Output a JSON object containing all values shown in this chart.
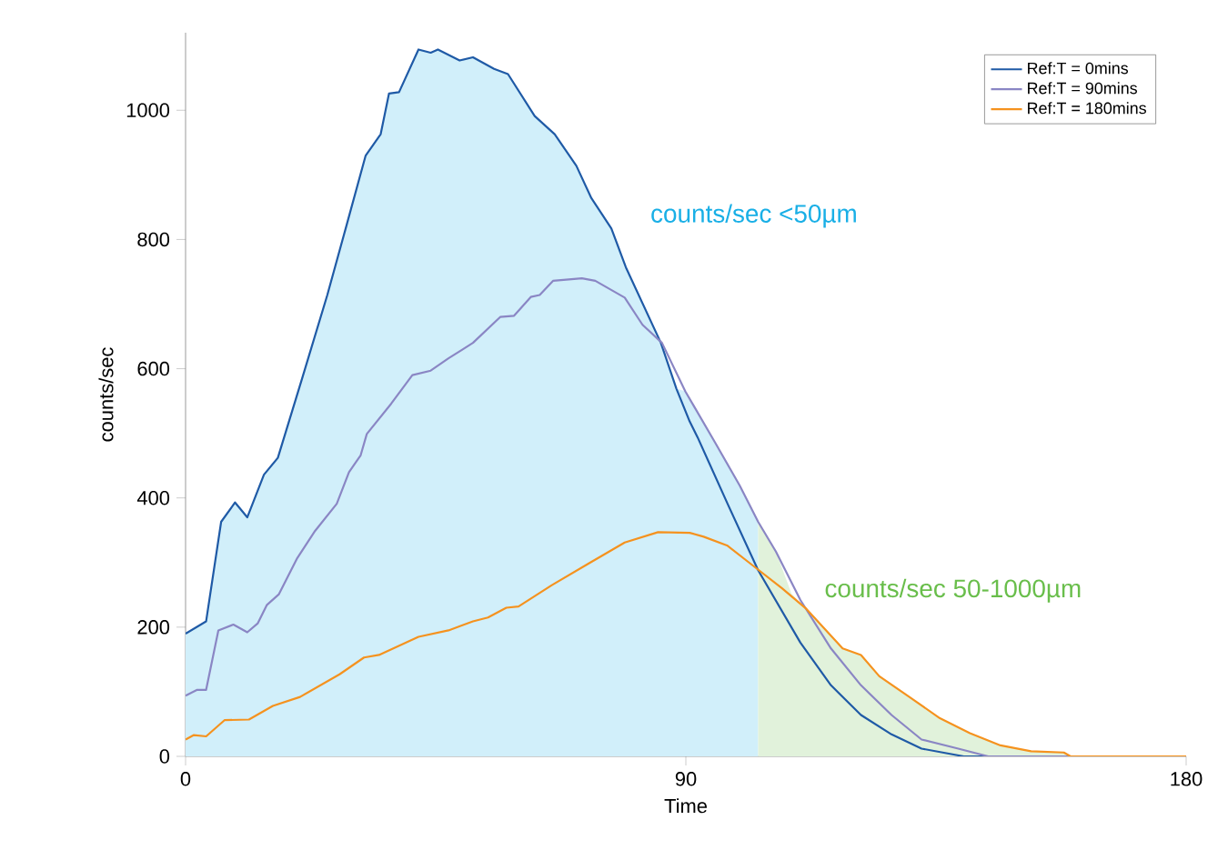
{
  "chart_data": {
    "type": "line",
    "xlabel": "Time",
    "ylabel": "counts/sec",
    "xlim": [
      0,
      180
    ],
    "xticks": [
      0,
      90,
      180
    ],
    "ylim": [
      0,
      1120
    ],
    "yticks": [
      0,
      200,
      400,
      600,
      800,
      1000
    ],
    "legend": "top right",
    "grid": false,
    "series": [
      {
        "type": "area",
        "name": "counts/sec <50µm",
        "color": "#d1effa",
        "x": [
          0,
          3.7,
          6.4,
          8.9,
          11.1,
          14.1,
          16.6,
          20.9,
          25.5,
          28.8,
          32.4,
          35.1,
          36.6,
          38.4,
          41.9,
          44.1,
          45.4,
          49.3,
          51.7,
          55.5,
          58.0,
          62.8,
          66.4,
          70.3,
          73.0,
          76.6,
          79.2,
          85.5,
          88.3,
          89.9,
          95.3,
          99.7,
          103
        ],
        "values": [
          190,
          209,
          363,
          393,
          370,
          436,
          462,
          583,
          714,
          817,
          930,
          963,
          1026,
          1028,
          1094,
          1089,
          1094,
          1077,
          1082,
          1064,
          1056,
          991,
          963,
          914,
          864,
          817,
          757,
          640,
          569,
          565,
          485,
          419,
          363
        ]
      },
      {
        "type": "area",
        "name": "counts/sec 50-1000µm",
        "color": "#e1f2db",
        "x": [
          103,
          106.2,
          109,
          111.7,
          118.2,
          121.5,
          124.8,
          130.2,
          135.7,
          141.1,
          146.6,
          152.1,
          158,
          159.2,
          180
        ],
        "values": [
          363,
          317,
          252,
          228,
          167,
          157,
          124,
          92,
          59,
          36,
          17,
          8,
          6,
          0,
          0
        ]
      },
      {
        "name": "Ref:T = 0mins",
        "color": "#1f5aa6",
        "x": [
          0,
          3.7,
          6.4,
          8.9,
          11.1,
          14.1,
          16.6,
          20.9,
          25.5,
          28.8,
          32.4,
          35.1,
          36.6,
          38.4,
          41.9,
          44.1,
          45.4,
          49.3,
          51.7,
          55.5,
          58.0,
          62.8,
          66.4,
          70.3,
          73.0,
          76.6,
          79.2,
          85.5,
          88.3,
          90.7,
          92.1,
          97.5,
          103,
          110.6,
          116.1,
          121.5,
          127,
          132.4,
          140,
          180
        ],
        "values": [
          190,
          209,
          363,
          393,
          370,
          436,
          462,
          583,
          714,
          817,
          930,
          963,
          1026,
          1028,
          1094,
          1089,
          1094,
          1077,
          1082,
          1064,
          1056,
          991,
          963,
          914,
          864,
          817,
          757,
          640,
          569,
          518,
          494,
          391,
          288,
          176,
          110,
          64,
          34,
          12,
          0,
          0
        ]
      },
      {
        "name": "Ref:T = 90mins",
        "color": "#8a86c4",
        "x": [
          0,
          2.1,
          3.7,
          5.9,
          8.6,
          11.1,
          13,
          14.6,
          16.8,
          20.1,
          23.3,
          27.2,
          29.4,
          31.5,
          32.6,
          37.0,
          40.8,
          44.1,
          47.3,
          51.7,
          56.6,
          59.1,
          62.1,
          63.7,
          66.1,
          71.3,
          73.7,
          79.0,
          82.2,
          85.7,
          89.9,
          95.3,
          99.7,
          103,
          106.2,
          110.6,
          116.1,
          121.5,
          127,
          132.4,
          139,
          144.4,
          180
        ],
        "values": [
          94,
          103,
          103,
          195,
          204,
          192,
          206,
          234,
          251,
          307,
          349,
          391,
          440,
          466,
          499,
          546,
          590,
          597,
          616,
          640,
          680,
          682,
          711,
          714,
          736,
          740,
          736,
          710,
          668,
          640,
          565,
          485,
          419,
          363,
          317,
          242,
          167,
          110,
          64,
          26,
          12,
          0,
          0
        ]
      },
      {
        "name": "Ref:T = 180mins",
        "color": "#f5921e",
        "x": [
          0,
          1.5,
          3.7,
          7,
          11.4,
          15.7,
          20.6,
          27.7,
          32.1,
          34.8,
          41.9,
          47.3,
          51.7,
          54.4,
          57.7,
          59.9,
          65.9,
          72.4,
          79,
          85,
          90.7,
          93.2,
          97.5,
          102.4,
          107.3,
          111.7,
          118.2,
          121.5,
          124.8,
          130.2,
          135.7,
          141.1,
          146.6,
          152.1,
          158,
          159.2,
          180
        ],
        "values": [
          26,
          33,
          31,
          56,
          57,
          78,
          92,
          127,
          153,
          157,
          185,
          195,
          209,
          215,
          230,
          232,
          265,
          298,
          331,
          347,
          346,
          340,
          326,
          293,
          260,
          228,
          167,
          157,
          124,
          92,
          59,
          36,
          17,
          8,
          6,
          0,
          0
        ]
      }
    ]
  }
}
